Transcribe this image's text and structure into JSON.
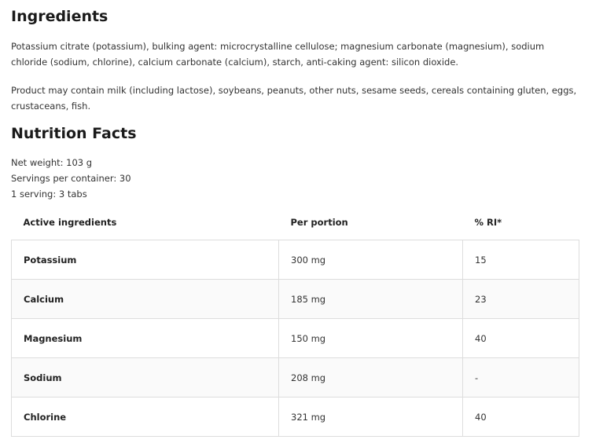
{
  "ingredients": {
    "title": "Ingredients",
    "text": "Potassium citrate (potassium), bulking agent: microcrystalline cellulose; magnesium carbonate (magnesium), sodium chloride (sodium, chlorine), calcium carbonate (calcium), starch, anti-caking agent: silicon dioxide.",
    "allergens": "Product may contain milk (including lactose), soybeans, peanuts, other nuts, sesame seeds, cereals containing gluten, eggs, crustaceans, fish."
  },
  "nutrition": {
    "title": "Nutrition Facts",
    "net_weight": "Net weight: 103 g",
    "servings": "Servings per container: 30",
    "serving_size": "1 serving: 3 tabs",
    "headers": [
      "Active ingredients",
      "Per portion",
      "% RI*"
    ],
    "rows": [
      [
        "Potassium",
        "300 mg",
        "15"
      ],
      [
        "Calcium",
        "185 mg",
        "23"
      ],
      [
        "Magnesium",
        "150 mg",
        "40"
      ],
      [
        "Sodium",
        "208 mg",
        "-"
      ],
      [
        "Chlorine",
        "321 mg",
        "40"
      ]
    ]
  }
}
